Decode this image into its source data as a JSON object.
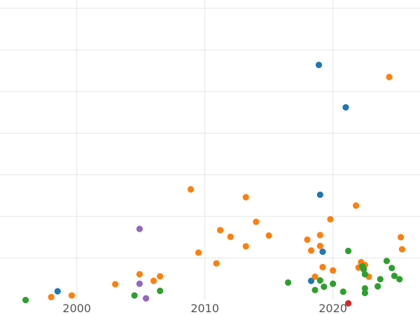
{
  "chart_data": {
    "type": "scatter",
    "title": "",
    "xlabel": "",
    "ylabel": "",
    "xlim": [
      1994,
      2026.8
    ],
    "ylim": [
      -0.2,
      7.0
    ],
    "x_ticks": [
      2000,
      2010,
      2020
    ],
    "x_tick_labels": [
      "2000",
      "2010",
      "2020"
    ],
    "y_gridlines": [
      0.8,
      1.8,
      2.8,
      3.8,
      4.8,
      5.8,
      6.8
    ],
    "y_tick_labels_visible": false,
    "grid": true,
    "legend": "none",
    "series": [
      {
        "color": "#1f77b4",
        "points": [
          {
            "x": 1998.5,
            "y": 0.0
          },
          {
            "x": 2018.9,
            "y": 5.44
          },
          {
            "x": 2021.0,
            "y": 4.42
          },
          {
            "x": 2019.0,
            "y": 2.32
          },
          {
            "x": 2019.2,
            "y": 0.95
          },
          {
            "x": 2018.3,
            "y": 0.25
          }
        ]
      },
      {
        "color": "#ff7f0e",
        "points": [
          {
            "x": 1998.0,
            "y": -0.14
          },
          {
            "x": 1999.6,
            "y": -0.1
          },
          {
            "x": 2003.0,
            "y": 0.17
          },
          {
            "x": 2004.9,
            "y": 0.41
          },
          {
            "x": 2006.0,
            "y": 0.25
          },
          {
            "x": 2006.5,
            "y": 0.36
          },
          {
            "x": 2008.9,
            "y": 2.45
          },
          {
            "x": 2009.5,
            "y": 0.93
          },
          {
            "x": 2010.9,
            "y": 0.67
          },
          {
            "x": 2011.2,
            "y": 1.47
          },
          {
            "x": 2012.0,
            "y": 1.31
          },
          {
            "x": 2013.2,
            "y": 2.26
          },
          {
            "x": 2013.2,
            "y": 1.08
          },
          {
            "x": 2014.0,
            "y": 1.67
          },
          {
            "x": 2015.0,
            "y": 1.34
          },
          {
            "x": 2018.0,
            "y": 1.24
          },
          {
            "x": 2018.3,
            "y": 0.98
          },
          {
            "x": 2018.6,
            "y": 0.35
          },
          {
            "x": 2019.0,
            "y": 1.35
          },
          {
            "x": 2019.0,
            "y": 1.09
          },
          {
            "x": 2019.2,
            "y": 0.58
          },
          {
            "x": 2019.8,
            "y": 1.73
          },
          {
            "x": 2020.0,
            "y": 0.5
          },
          {
            "x": 2021.8,
            "y": 2.06
          },
          {
            "x": 2022.0,
            "y": 0.57
          },
          {
            "x": 2022.2,
            "y": 0.7
          },
          {
            "x": 2022.5,
            "y": 0.63
          },
          {
            "x": 2022.8,
            "y": 0.35
          },
          {
            "x": 2024.4,
            "y": 5.15
          },
          {
            "x": 2025.3,
            "y": 1.3
          },
          {
            "x": 2025.4,
            "y": 1.01
          }
        ]
      },
      {
        "color": "#2ca02c",
        "points": [
          {
            "x": 1996.0,
            "y": -0.21
          },
          {
            "x": 2004.5,
            "y": -0.1
          },
          {
            "x": 2006.5,
            "y": 0.01
          },
          {
            "x": 2016.5,
            "y": 0.21
          },
          {
            "x": 2018.6,
            "y": 0.03
          },
          {
            "x": 2019.0,
            "y": 0.26
          },
          {
            "x": 2019.3,
            "y": 0.11
          },
          {
            "x": 2020.0,
            "y": 0.18
          },
          {
            "x": 2020.8,
            "y": -0.01
          },
          {
            "x": 2021.2,
            "y": 0.97
          },
          {
            "x": 2022.3,
            "y": 0.6
          },
          {
            "x": 2022.4,
            "y": 0.53
          },
          {
            "x": 2022.5,
            "y": 0.41
          },
          {
            "x": 2022.5,
            "y": 0.07
          },
          {
            "x": 2022.5,
            "y": -0.04
          },
          {
            "x": 2023.5,
            "y": 0.12
          },
          {
            "x": 2023.7,
            "y": 0.29
          },
          {
            "x": 2024.2,
            "y": 0.73
          },
          {
            "x": 2024.6,
            "y": 0.56
          },
          {
            "x": 2024.8,
            "y": 0.37
          },
          {
            "x": 2025.2,
            "y": 0.29
          }
        ]
      },
      {
        "color": "#d62728",
        "points": [
          {
            "x": 2021.2,
            "y": -0.29
          }
        ]
      },
      {
        "color": "#9467bd",
        "points": [
          {
            "x": 2004.9,
            "y": 1.5
          },
          {
            "x": 2004.9,
            "y": 0.18
          },
          {
            "x": 2005.4,
            "y": -0.17
          }
        ]
      }
    ]
  }
}
